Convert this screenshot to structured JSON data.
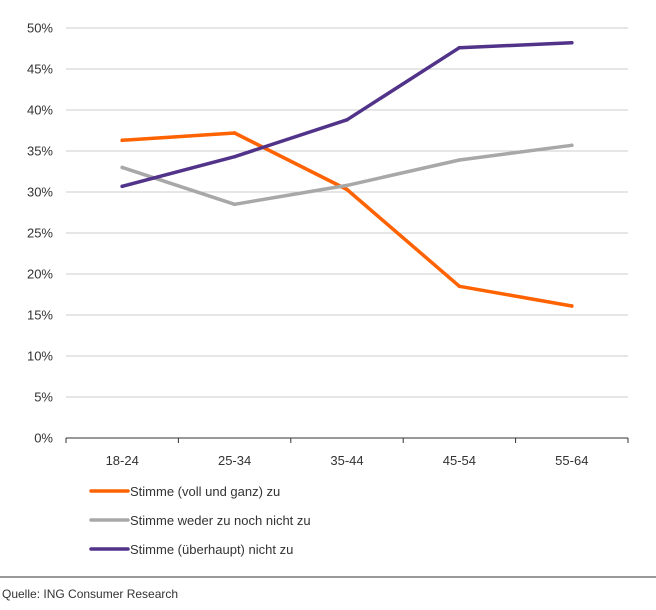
{
  "chart_data": {
    "type": "line",
    "title": "",
    "xlabel": "",
    "ylabel": "",
    "categories": [
      "18-24",
      "25-34",
      "35-44",
      "45-54",
      "55-64"
    ],
    "ylim": [
      0,
      50
    ],
    "y_ticks": [
      0,
      5,
      10,
      15,
      20,
      25,
      30,
      35,
      40,
      45,
      50
    ],
    "y_tick_labels": [
      "0%",
      "5%",
      "10%",
      "15%",
      "20%",
      "25%",
      "30%",
      "35%",
      "40%",
      "45%",
      "50%"
    ],
    "grid": "horizontal",
    "legend_position": "bottom",
    "series": [
      {
        "name": "Stimme (voll und ganz) zu",
        "color": "#ff6200",
        "values": [
          36.3,
          37.2,
          30.3,
          18.5,
          16.1
        ]
      },
      {
        "name": "Stimme weder zu noch nicht zu",
        "color": "#a8a8a8",
        "values": [
          33.0,
          28.5,
          30.8,
          33.9,
          35.7
        ]
      },
      {
        "name": "Stimme (überhaupt) nicht zu",
        "color": "#52338a",
        "values": [
          30.7,
          34.3,
          38.8,
          47.6,
          48.2
        ]
      }
    ]
  },
  "footer": {
    "source": "Quelle: ING Consumer Research"
  }
}
